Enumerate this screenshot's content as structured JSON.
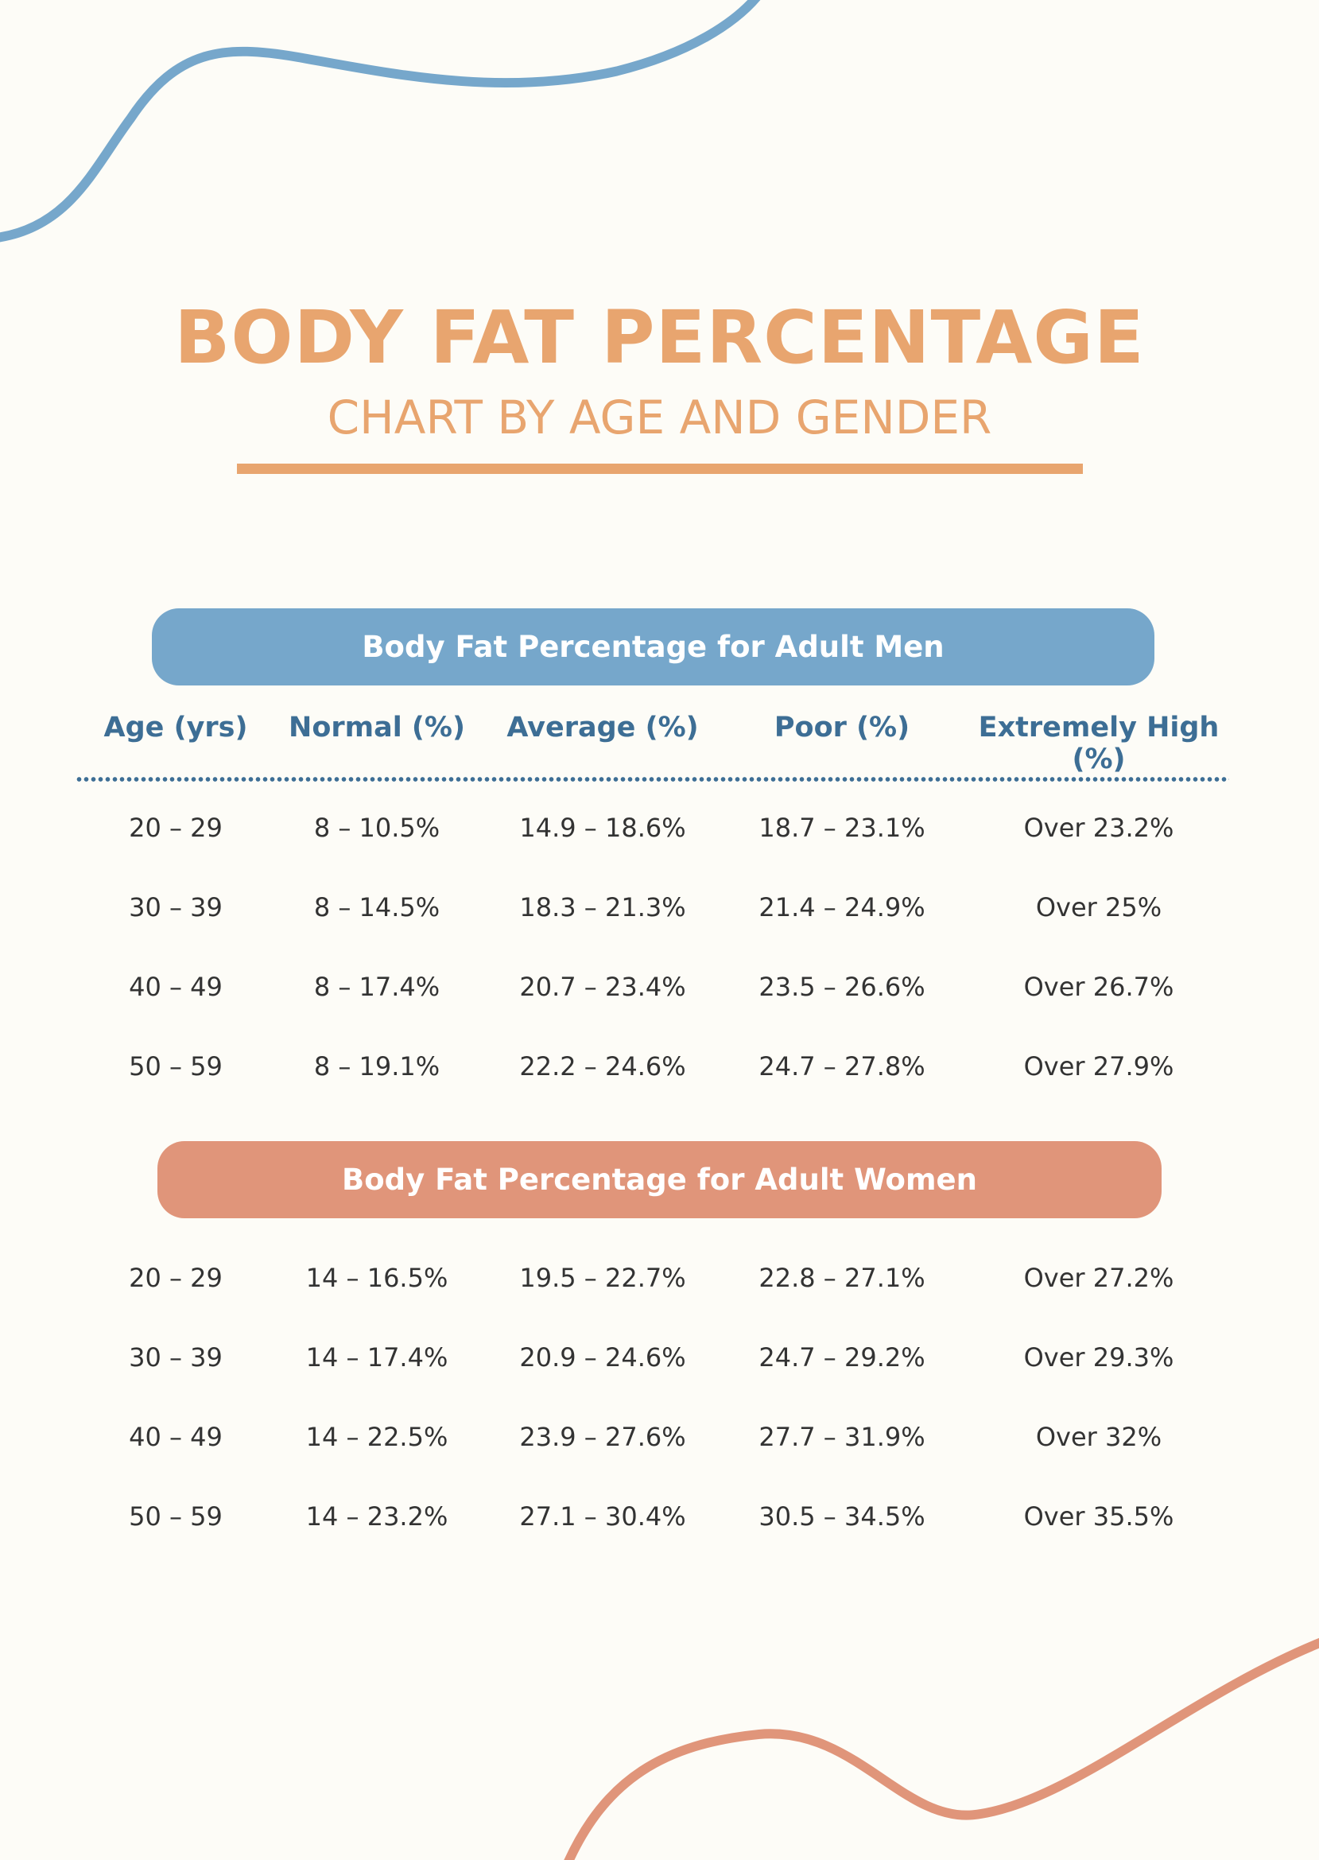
{
  "header": {
    "title": "BODY FAT PERCENTAGE",
    "subtitle": "CHART BY AGE AND GENDER"
  },
  "colors": {
    "background": "#fdfcf7",
    "title": "#e8a56f",
    "men_band": "#76a7cb",
    "women_band": "#e0957a",
    "column_header": "#3d6e95",
    "text": "#333333"
  },
  "columns": [
    "Age (yrs)",
    "Normal (%)",
    "Average (%)",
    "Poor (%)",
    "Extremely High (%)"
  ],
  "men": {
    "label": "Body Fat Percentage for Adult Men",
    "rows": [
      [
        "20 – 29",
        "8 – 10.5%",
        "14.9 – 18.6%",
        "18.7 – 23.1%",
        "Over 23.2%"
      ],
      [
        "30 – 39",
        "8 – 14.5%",
        "18.3 – 21.3%",
        "21.4 – 24.9%",
        "Over 25%"
      ],
      [
        "40 – 49",
        "8 – 17.4%",
        "20.7 – 23.4%",
        "23.5 – 26.6%",
        "Over 26.7%"
      ],
      [
        "50 – 59",
        "8 – 19.1%",
        "22.2 – 24.6%",
        "24.7 – 27.8%",
        "Over 27.9%"
      ]
    ]
  },
  "women": {
    "label": "Body Fat Percentage for Adult Women",
    "rows": [
      [
        "20 – 29",
        "14 – 16.5%",
        "19.5 – 22.7%",
        "22.8 – 27.1%",
        "Over 27.2%"
      ],
      [
        "30 – 39",
        "14 – 17.4%",
        "20.9 – 24.6%",
        "24.7 – 29.2%",
        "Over 29.3%"
      ],
      [
        "40 – 49",
        "14 – 22.5%",
        "23.9 – 27.6%",
        "27.7 – 31.9%",
        "Over 32%"
      ],
      [
        "50 – 59",
        "14 – 23.2%",
        "27.1 – 30.4%",
        "30.5 – 34.5%",
        "Over 35.5%"
      ]
    ]
  }
}
